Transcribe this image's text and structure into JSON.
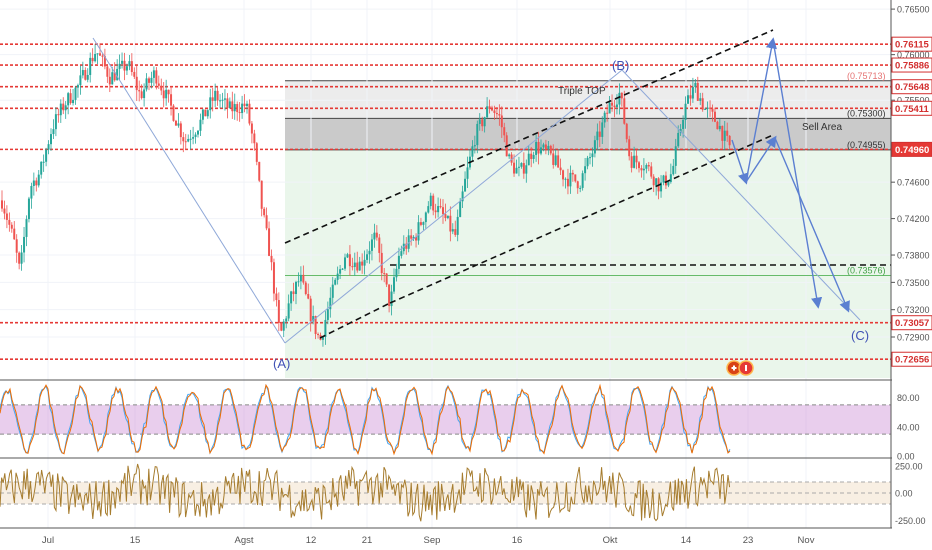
{
  "chart_data": [
    {
      "type": "candlestick",
      "panel": "price",
      "title": "",
      "ylim": [
        0.7245,
        0.766
      ],
      "x_tick_labels": [
        "Jul",
        "15",
        "Agst",
        "12",
        "21",
        "Sep",
        "16",
        "Okt",
        "14",
        "23",
        "Nov"
      ],
      "y_tick_labels": [
        "0.76500",
        "0.76000",
        "0.75500",
        "0.74600",
        "0.74200",
        "0.73800",
        "0.73500",
        "0.73200",
        "0.72900"
      ],
      "price_labels": [
        {
          "text": "0.76115",
          "value": 0.76115,
          "color": "#d32f2f",
          "style": "red-box"
        },
        {
          "text": "0.75886",
          "value": 0.75886,
          "color": "#d32f2f",
          "style": "red-box"
        },
        {
          "text": "(0.75713)",
          "value": 0.75713,
          "color": "#e57373",
          "style": "plain"
        },
        {
          "text": "0.75648",
          "value": 0.75648,
          "color": "#d32f2f",
          "style": "red-box"
        },
        {
          "text": "0.75411",
          "value": 0.75411,
          "color": "#d32f2f",
          "style": "red-box"
        },
        {
          "text": "(0.75300)",
          "value": 0.753,
          "color": "#333333",
          "style": "plain"
        },
        {
          "text": "(0.74955)",
          "value": 0.74955,
          "color": "#333333",
          "style": "plain"
        },
        {
          "text": "0.74960",
          "value": 0.7496,
          "color": "#d32f2f",
          "style": "red-fill"
        },
        {
          "text": "(0.73576)",
          "value": 0.73576,
          "color": "#43a047",
          "style": "plain"
        },
        {
          "text": "0.73057",
          "value": 0.73057,
          "color": "#d32f2f",
          "style": "red-box"
        },
        {
          "text": "0.72656",
          "value": 0.72656,
          "color": "#d32f2f",
          "style": "red-box"
        }
      ],
      "horizontal_levels": [
        0.76115,
        0.75886,
        0.75648,
        0.75411,
        0.7496,
        0.73057,
        0.72656
      ],
      "zones": [
        {
          "name": "Sell Area",
          "from": 0.74955,
          "to": 0.753
        },
        {
          "name": "",
          "from": 0.753,
          "to": 0.75713
        },
        {
          "name": "",
          "from": 0.72656,
          "to": 0.74955
        }
      ],
      "annotations": [
        "Triple TOP",
        "Sell Area",
        "(A)",
        "(B)",
        "(C)"
      ],
      "wave_points": [
        {
          "label": "(A)",
          "date": "2020-08-07",
          "value": 0.7275
        },
        {
          "label": "(B)",
          "date": "2020-10-06",
          "value": 0.7568
        },
        {
          "label": "(C)",
          "date": "2020-10-30",
          "value": 0.7295
        }
      ],
      "last_price": 0.7496,
      "colors": {
        "up": "#26a69a",
        "down": "#ef5350",
        "level": "#e53935",
        "projection": "#5b7fd1"
      }
    },
    {
      "type": "line",
      "panel": "stochastic",
      "ylim": [
        0,
        100
      ],
      "y_tick_labels": [
        "80.00",
        "40.00",
        "0.00"
      ],
      "band": [
        30,
        70
      ],
      "series_colors": [
        "#42a5f5",
        "#ef6c00"
      ]
    },
    {
      "type": "line",
      "panel": "oscillator",
      "ylim": [
        -300,
        300
      ],
      "y_tick_labels": [
        "250.00",
        "0.00",
        "-250.00"
      ],
      "band": [
        -100,
        100
      ],
      "series_colors": [
        "#a67c2e"
      ]
    }
  ]
}
